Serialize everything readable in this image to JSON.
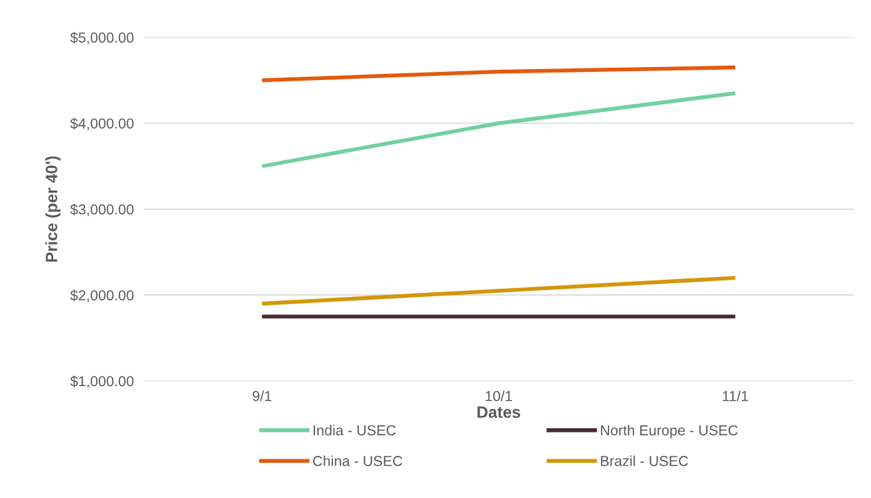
{
  "chart_data": {
    "type": "line",
    "xlabel": "Dates",
    "ylabel": "Price (per 40')",
    "categories": [
      "9/1",
      "10/1",
      "11/1"
    ],
    "series": [
      {
        "name": "India - USEC",
        "color": "#72d0a0",
        "values": [
          3500,
          4000,
          4350
        ]
      },
      {
        "name": "North Europe - USEC",
        "color": "#4a2a35",
        "values": [
          1750,
          1750,
          1750
        ]
      },
      {
        "name": "China - USEC",
        "color": "#e35a0e",
        "values": [
          4500,
          4600,
          4650
        ]
      },
      {
        "name": "Brazil - USEC",
        "color": "#d4960a",
        "values": [
          1900,
          2050,
          2200
        ]
      }
    ],
    "ylim": [
      1000,
      5000
    ],
    "yticks": [
      {
        "value": 1000,
        "label": "$1,000.00"
      },
      {
        "value": 2000,
        "label": "$2,000.00"
      },
      {
        "value": 3000,
        "label": "$3,000.00"
      },
      {
        "value": 4000,
        "label": "$4,000.00"
      },
      {
        "value": 5000,
        "label": "$5,000.00"
      }
    ],
    "grid": "y",
    "legend": "bottom",
    "marker": "none",
    "line_style": "solid"
  }
}
